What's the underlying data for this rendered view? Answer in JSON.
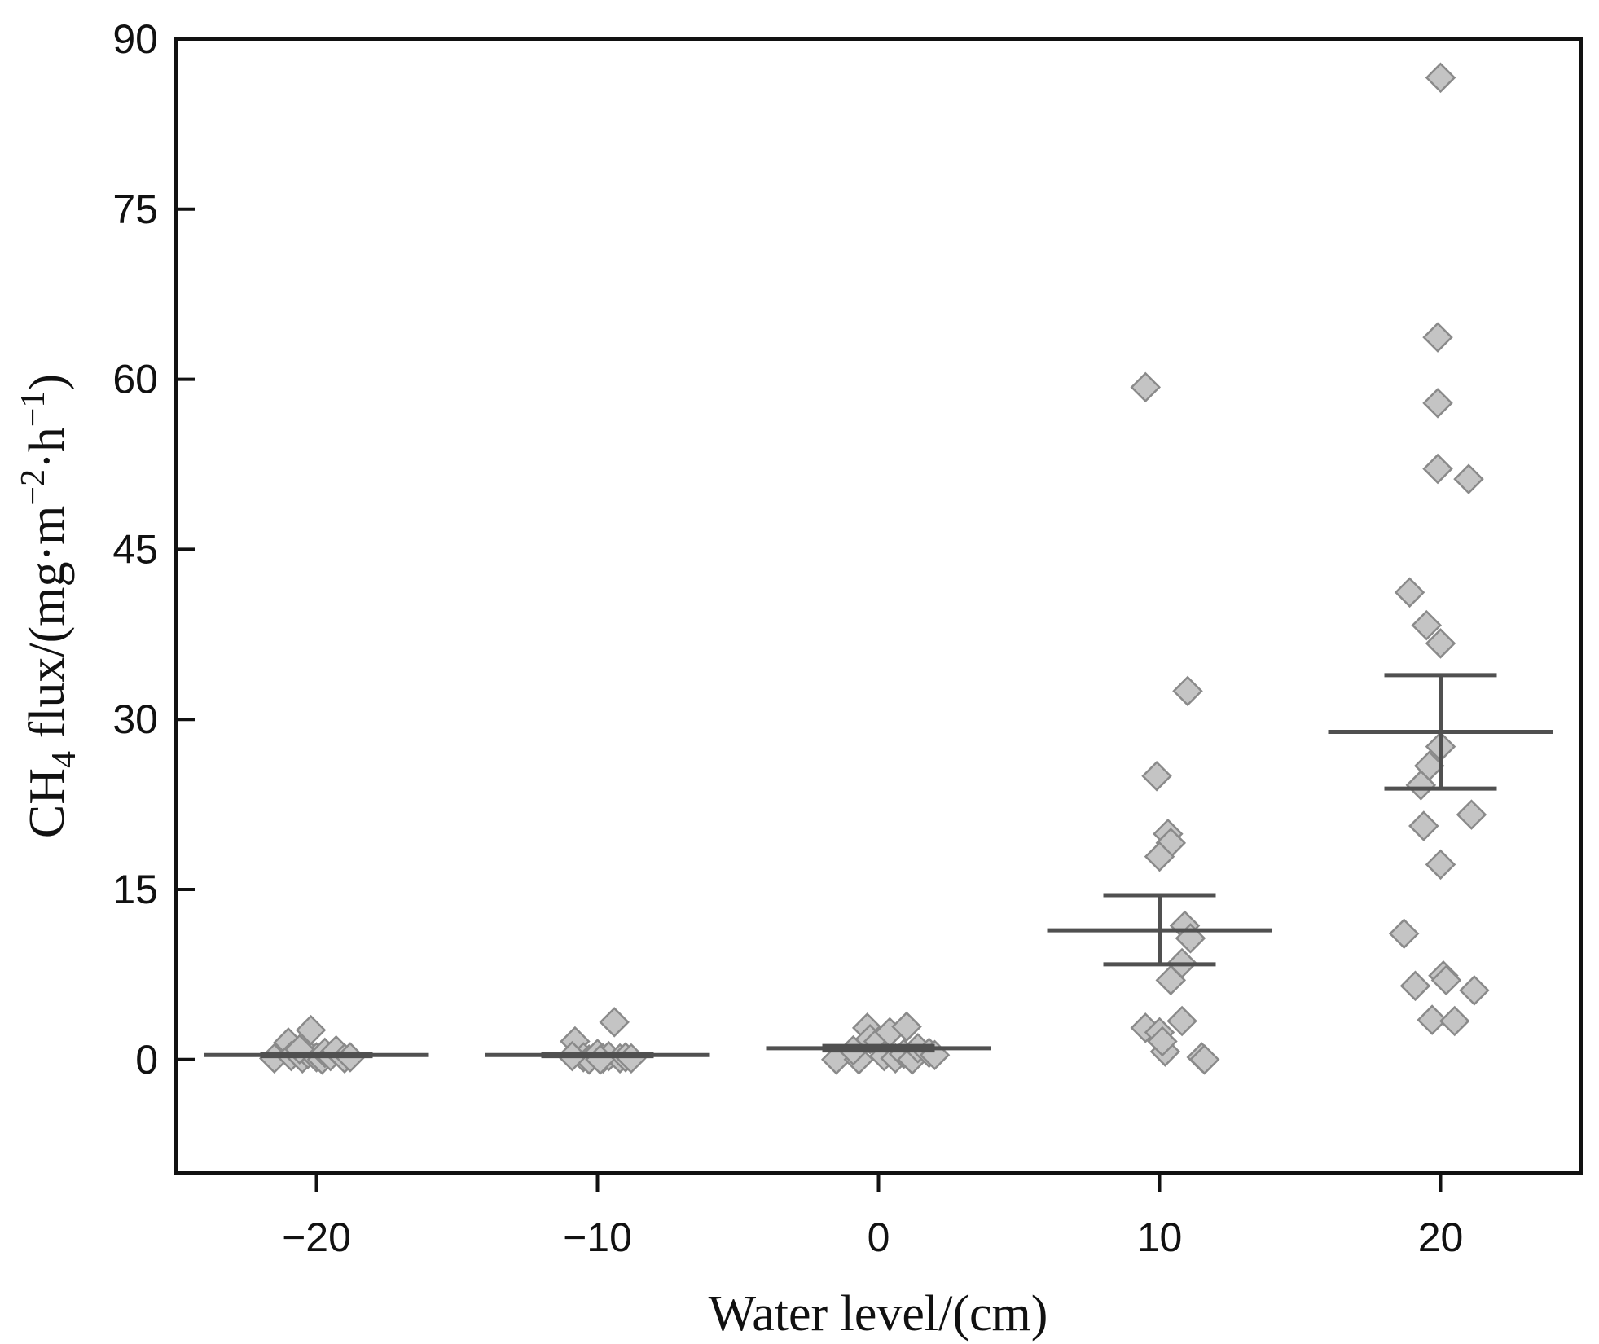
{
  "chart_data": {
    "type": "scatter",
    "title": "",
    "xlabel": "Water level/(cm)",
    "ylabel": {
      "prefix": "CH",
      "subscript": "4",
      "text": " flux/(mg·m",
      "sup1": "−2",
      "mid": "·h",
      "sup2": "−1",
      "suffix": ")"
    },
    "xlim": [
      -25,
      25
    ],
    "ylim": [
      -10,
      90
    ],
    "x_ticks": [
      {
        "value": -20,
        "label": "−20"
      },
      {
        "value": -10,
        "label": "−10"
      },
      {
        "value": 0,
        "label": "0"
      },
      {
        "value": 10,
        "label": "10"
      },
      {
        "value": 20,
        "label": "20"
      }
    ],
    "y_ticks": [
      {
        "value": 0,
        "label": "0"
      },
      {
        "value": 15,
        "label": "15"
      },
      {
        "value": 30,
        "label": "30"
      },
      {
        "value": 45,
        "label": "45"
      },
      {
        "value": 60,
        "label": "60"
      },
      {
        "value": 75,
        "label": "75"
      },
      {
        "value": 90,
        "label": "90"
      }
    ],
    "marker": {
      "shape": "diamond",
      "fill": "#c4c4c4",
      "stroke": "#8a8a8a"
    },
    "summary_color": "#505050",
    "groups": [
      {
        "x": -20,
        "mean": 0.4,
        "se_low": 0.3,
        "se_high": 0.5,
        "points": [
          [
            -21.5,
            0.1
          ],
          [
            -21.0,
            1.5
          ],
          [
            -20.9,
            0.3
          ],
          [
            -20.5,
            0.1
          ],
          [
            -20.3,
            0.5
          ],
          [
            -20.2,
            2.6
          ],
          [
            -20.0,
            0.2
          ],
          [
            -19.8,
            0.0
          ],
          [
            -19.7,
            0.6
          ],
          [
            -19.5,
            0.3
          ],
          [
            -19.3,
            0.8
          ],
          [
            -19.0,
            0.1
          ],
          [
            -18.8,
            0.2
          ],
          [
            -20.6,
            0.9
          ]
        ]
      },
      {
        "x": -10,
        "mean": 0.4,
        "se_low": 0.3,
        "se_high": 0.5,
        "points": [
          [
            -10.8,
            1.6
          ],
          [
            -10.5,
            0.2
          ],
          [
            -10.3,
            0.0
          ],
          [
            -10.0,
            0.5
          ],
          [
            -9.8,
            0.1
          ],
          [
            -9.6,
            0.3
          ],
          [
            -9.4,
            3.3
          ],
          [
            -9.2,
            0.1
          ],
          [
            -9.0,
            0.2
          ],
          [
            -8.8,
            0.1
          ],
          [
            -10.9,
            0.3
          ],
          [
            -9.9,
            0.0
          ]
        ]
      },
      {
        "x": 0,
        "mean": 1.0,
        "se_low": 0.8,
        "se_high": 1.2,
        "points": [
          [
            -1.5,
            0.0
          ],
          [
            -0.7,
            0.0
          ],
          [
            -0.4,
            2.8
          ],
          [
            -0.3,
            1.8
          ],
          [
            0.0,
            1.6
          ],
          [
            0.2,
            0.3
          ],
          [
            0.4,
            2.4
          ],
          [
            0.6,
            0.1
          ],
          [
            0.9,
            0.5
          ],
          [
            1.0,
            2.9
          ],
          [
            1.2,
            0.0
          ],
          [
            1.4,
            1.0
          ],
          [
            1.8,
            0.6
          ],
          [
            2.0,
            0.4
          ],
          [
            -0.9,
            0.8
          ]
        ]
      },
      {
        "x": 10,
        "mean": 11.4,
        "se_low": 8.4,
        "se_high": 14.5,
        "points": [
          [
            9.5,
            59.3
          ],
          [
            11.0,
            32.5
          ],
          [
            9.9,
            25.0
          ],
          [
            10.3,
            19.9
          ],
          [
            10.4,
            19.1
          ],
          [
            10.0,
            17.9
          ],
          [
            10.9,
            11.8
          ],
          [
            11.1,
            10.7
          ],
          [
            10.8,
            8.5
          ],
          [
            10.4,
            7.0
          ],
          [
            9.5,
            2.8
          ],
          [
            10.0,
            2.4
          ],
          [
            10.8,
            3.4
          ],
          [
            10.2,
            0.7
          ],
          [
            11.5,
            0.2
          ],
          [
            11.6,
            0.0
          ],
          [
            10.1,
            1.6
          ]
        ]
      },
      {
        "x": 20,
        "mean": 28.9,
        "se_low": 23.9,
        "se_high": 33.9,
        "points": [
          [
            20.0,
            86.6
          ],
          [
            19.9,
            63.7
          ],
          [
            19.9,
            57.9
          ],
          [
            19.9,
            52.1
          ],
          [
            21.0,
            51.2
          ],
          [
            18.9,
            41.2
          ],
          [
            19.5,
            38.3
          ],
          [
            20.0,
            36.7
          ],
          [
            20.0,
            27.6
          ],
          [
            19.6,
            25.9
          ],
          [
            19.3,
            24.2
          ],
          [
            21.1,
            21.6
          ],
          [
            19.4,
            20.6
          ],
          [
            20.0,
            17.2
          ],
          [
            18.7,
            11.1
          ],
          [
            20.1,
            7.4
          ],
          [
            20.2,
            7.0
          ],
          [
            19.1,
            6.5
          ],
          [
            21.2,
            6.1
          ],
          [
            19.7,
            3.5
          ],
          [
            20.5,
            3.4
          ]
        ]
      }
    ]
  }
}
